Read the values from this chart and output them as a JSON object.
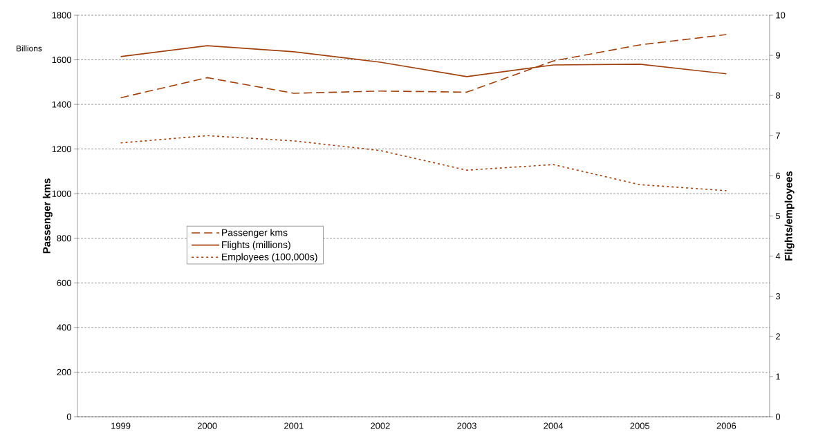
{
  "chart_data": {
    "type": "line",
    "categories": [
      "1999",
      "2000",
      "2001",
      "2002",
      "2003",
      "2004",
      "2005",
      "2006"
    ],
    "series": [
      {
        "name": "Passenger kms",
        "color": "#a0410d",
        "line_style": "dashed",
        "values": [
          1430,
          1520,
          1450,
          1460,
          1455,
          1595,
          1667,
          1713
        ]
      },
      {
        "name": "Flights (millions)",
        "color": "#a0410d",
        "line_style": "solid",
        "axis": "y2",
        "values": [
          8.97,
          9.24,
          9.09,
          8.83,
          8.47,
          8.76,
          8.78,
          8.54
        ]
      },
      {
        "name": "Employees (100,000s)",
        "color": "#a0410d",
        "line_style": "dotted",
        "axis": "y2",
        "values": [
          6.82,
          7.0,
          6.87,
          6.63,
          6.14,
          6.28,
          5.78,
          5.63
        ]
      }
    ],
    "ylabel": "Passenger kms",
    "y2label": "Flights/employees",
    "annotations": [
      "Billions"
    ],
    "ylim": [
      0,
      1800
    ],
    "yticks": [
      0,
      200,
      400,
      600,
      800,
      1000,
      1200,
      1400,
      1600,
      1800
    ],
    "y2lim": [
      0,
      10
    ],
    "y2ticks": [
      0,
      1,
      2,
      3,
      4,
      5,
      6,
      7,
      8,
      9,
      10
    ],
    "grid": "y",
    "legend": "left"
  }
}
